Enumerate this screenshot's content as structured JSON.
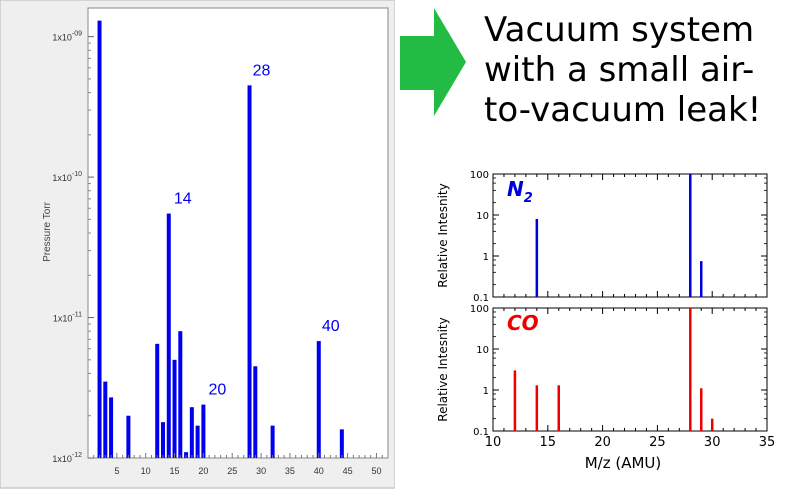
{
  "headline": {
    "lines": [
      "Vacuum system",
      "with a small air-",
      "to-vacuum leak!"
    ]
  },
  "colors": {
    "main_bars": "#0000ee",
    "n2_lines": "#0000dd",
    "co_lines": "#ee0000",
    "arrow": "#22bb44",
    "main_panel_border": "#c8c8c8",
    "main_panel_bg": "#efefef"
  },
  "arrow_icon": "right-arrow-icon",
  "chart_data": [
    {
      "type": "bar",
      "scale": "log",
      "ylabel": "Pressure Torr",
      "xlabel": "",
      "xlim": [
        0,
        52
      ],
      "ylim": [
        1e-12,
        1.6e-09
      ],
      "y_tick_labels": [
        "1x10-09",
        "1x10-10",
        "1x10-11",
        "1x10-12"
      ],
      "y_tick_values": [
        1e-09,
        1e-10,
        1e-11,
        1e-12
      ],
      "x_tick_labels": [
        "5",
        "10",
        "15",
        "20",
        "25",
        "30",
        "35",
        "40",
        "45",
        "50"
      ],
      "x": [
        2,
        3,
        4,
        7,
        12,
        13,
        14,
        15,
        16,
        17,
        18,
        19,
        20,
        28,
        29,
        32,
        40,
        44
      ],
      "values": [
        1.3e-09,
        3.5e-12,
        2.7e-12,
        2e-12,
        6.5e-12,
        1.8e-12,
        5.5e-11,
        5e-12,
        8e-12,
        1.1e-12,
        2.3e-12,
        1.7e-12,
        2.4e-12,
        4.5e-10,
        4.5e-12,
        1.7e-12,
        6.8e-12,
        1.6e-12
      ],
      "annotations": [
        {
          "x": 14,
          "text": "14"
        },
        {
          "x": 20,
          "text": "20"
        },
        {
          "x": 28,
          "text": "28"
        },
        {
          "x": 40,
          "text": "40"
        }
      ]
    },
    {
      "type": "bar",
      "scale": "log",
      "name": "N2",
      "label": "N",
      "label_sub": "2",
      "ylabel": "Relative Intesnity",
      "xlim": [
        10,
        35
      ],
      "ylim": [
        0.1,
        100
      ],
      "y_tick_labels": [
        "100",
        "10",
        "1",
        "0.1"
      ],
      "x": [
        14,
        28,
        29
      ],
      "values": [
        8,
        100,
        0.75
      ]
    },
    {
      "type": "bar",
      "scale": "log",
      "name": "CO",
      "label": "CO",
      "ylabel": "Relative Intesnity",
      "xlabel": "M/z (AMU)",
      "xlim": [
        10,
        35
      ],
      "ylim": [
        0.1,
        100
      ],
      "y_tick_labels": [
        "100",
        "10",
        "1",
        "0.1"
      ],
      "x_tick_labels": [
        "10",
        "15",
        "20",
        "25",
        "30",
        "35"
      ],
      "x": [
        12,
        14,
        16,
        28,
        29,
        30
      ],
      "values": [
        3,
        1.3,
        1.3,
        100,
        1.1,
        0.2
      ]
    }
  ]
}
